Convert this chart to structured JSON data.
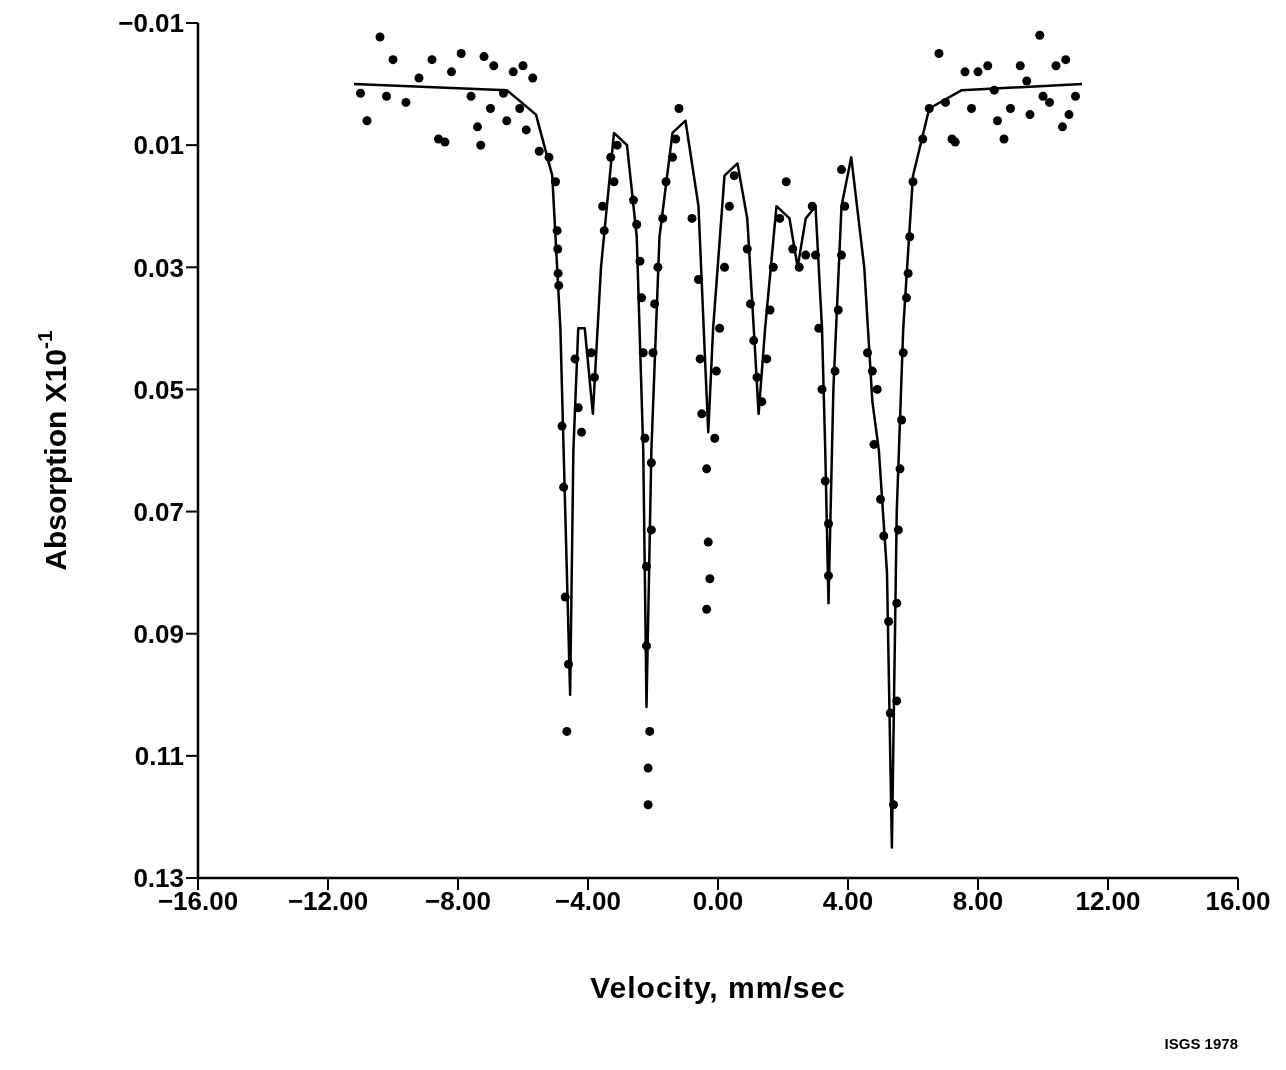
{
  "chart_data": {
    "type": "scatter",
    "xlabel": "Velocity, mm/sec",
    "ylabel": "Absorption X10$^{-1}$",
    "annotations": [
      "ISGS 1978"
    ],
    "xlim": [
      -16,
      16
    ],
    "ylim": [
      0.13,
      -0.01
    ],
    "xticks": [
      {
        "value": -16,
        "label": "−16.00"
      },
      {
        "value": -12,
        "label": "−12.00"
      },
      {
        "value": -8,
        "label": "−8.00"
      },
      {
        "value": -4,
        "label": "−4.00"
      },
      {
        "value": 0,
        "label": "0.00"
      },
      {
        "value": 4,
        "label": "4.00"
      },
      {
        "value": 8,
        "label": "8.00"
      },
      {
        "value": 12,
        "label": "12.00"
      },
      {
        "value": 16,
        "label": "16.00"
      }
    ],
    "yticks": [
      {
        "value": -0.01,
        "label": "−0.01"
      },
      0.01,
      0.03,
      0.05,
      0.07,
      0.09,
      0.11,
      0.13
    ],
    "grid": false,
    "marker": "circle",
    "series": [
      {
        "color": "#000000",
        "x": [
          -11.0,
          -10.8,
          -10.4,
          -10.2,
          -10.0,
          -9.6,
          -9.2,
          -8.8,
          -8.6,
          -8.4,
          -8.2,
          -7.9,
          -7.6,
          -7.4,
          -7.2,
          -7.0,
          -6.9,
          -6.6,
          -6.3,
          -6.0,
          -5.7,
          -6.5,
          -6.1,
          -5.9,
          -7.3,
          -5.5,
          -5.2,
          -5.0,
          -4.95,
          -4.93,
          -4.92,
          -4.9,
          -4.8,
          -4.75,
          -4.7,
          -4.6,
          -4.65,
          -4.4,
          -4.3,
          -4.2,
          -3.9,
          -3.8,
          -3.55,
          -3.5,
          -3.3,
          -3.1,
          -3.2,
          -2.6,
          -2.5,
          -2.4,
          -2.35,
          -2.3,
          -2.25,
          -2.2,
          -2.2,
          -2.1,
          -2.15,
          -2.15,
          -2.05,
          -2.05,
          -2.0,
          -1.95,
          -1.85,
          -1.7,
          -1.6,
          -1.4,
          -1.3,
          -1.2,
          -0.8,
          -0.6,
          -0.55,
          -0.5,
          -0.35,
          -0.3,
          -0.25,
          -0.35,
          -0.1,
          -0.05,
          0.05,
          0.2,
          0.35,
          0.5,
          0.9,
          1.0,
          1.1,
          1.2,
          1.35,
          1.5,
          1.6,
          1.7,
          1.9,
          2.1,
          2.3,
          2.5,
          2.7,
          2.9,
          3.0,
          3.1,
          3.2,
          3.3,
          3.4,
          3.4,
          3.6,
          3.7,
          3.8,
          3.9,
          3.8,
          4.6,
          4.75,
          4.8,
          4.9,
          5.0,
          5.1,
          5.25,
          5.3,
          5.4,
          5.5,
          5.5,
          5.55,
          5.6,
          5.65,
          5.7,
          5.8,
          5.85,
          5.9,
          6.0,
          6.3,
          6.5,
          6.8,
          7.0,
          7.2,
          7.3,
          7.6,
          7.8,
          8.0,
          8.3,
          8.6,
          8.8,
          9.0,
          9.3,
          9.6,
          9.9,
          10.0,
          10.2,
          10.4,
          10.6,
          10.8,
          11.0,
          10.7,
          9.5,
          8.5
        ],
        "values": [
          0.0015,
          0.006,
          -0.0077,
          0.002,
          -0.004,
          0.003,
          -0.001,
          -0.004,
          0.009,
          0.0095,
          -0.002,
          -0.005,
          0.002,
          0.007,
          -0.0045,
          0.004,
          -0.003,
          0.0015,
          -0.002,
          -0.003,
          -0.001,
          0.006,
          0.004,
          0.0075,
          0.01,
          0.011,
          0.012,
          0.016,
          0.024,
          0.027,
          0.031,
          0.033,
          0.056,
          0.066,
          0.084,
          0.095,
          0.106,
          0.045,
          0.053,
          0.057,
          0.044,
          0.048,
          0.02,
          0.024,
          0.012,
          0.01,
          0.016,
          0.019,
          0.023,
          0.029,
          0.035,
          0.044,
          0.058,
          0.079,
          0.092,
          0.106,
          0.112,
          0.118,
          0.073,
          0.062,
          0.044,
          0.036,
          0.03,
          0.022,
          0.016,
          0.012,
          0.009,
          0.004,
          0.022,
          0.032,
          0.045,
          0.054,
          0.063,
          0.075,
          0.081,
          0.086,
          0.058,
          0.047,
          0.04,
          0.03,
          0.02,
          0.015,
          0.027,
          0.036,
          0.042,
          0.048,
          0.052,
          0.045,
          0.037,
          0.03,
          0.022,
          0.016,
          0.027,
          0.03,
          0.028,
          0.02,
          0.028,
          0.04,
          0.05,
          0.065,
          0.072,
          0.0805,
          0.047,
          0.037,
          0.028,
          0.02,
          0.014,
          0.044,
          0.047,
          0.059,
          0.05,
          0.068,
          0.074,
          0.088,
          0.103,
          0.118,
          0.101,
          0.085,
          0.073,
          0.063,
          0.055,
          0.044,
          0.035,
          0.031,
          0.025,
          0.016,
          0.009,
          0.004,
          -0.005,
          0.003,
          0.009,
          0.0095,
          -0.002,
          0.004,
          -0.002,
          -0.003,
          0.006,
          0.009,
          0.004,
          -0.003,
          0.005,
          -0.008,
          0.002,
          0.003,
          -0.003,
          0.007,
          0.005,
          0.002,
          -0.004,
          -0.0005,
          0.001
        ]
      },
      {
        "type": "line",
        "color": "#000000",
        "marker": "none",
        "line_style": "solid",
        "x": [
          -11.2,
          -6.5,
          -5.6,
          -5.1,
          -4.85,
          -4.65,
          -4.55,
          -4.45,
          -4.3,
          -4.1,
          -3.85,
          -3.6,
          -3.2,
          -2.8,
          -2.5,
          -2.3,
          -2.2,
          -2.05,
          -1.8,
          -1.4,
          -1.0,
          -0.6,
          -0.4,
          -0.3,
          -0.15,
          0.2,
          0.6,
          0.9,
          1.1,
          1.25,
          1.45,
          1.8,
          2.2,
          2.45,
          2.7,
          3.0,
          3.2,
          3.3,
          3.4,
          3.55,
          3.8,
          4.1,
          4.5,
          4.75,
          4.95,
          5.2,
          5.35,
          5.5,
          5.7,
          6.0,
          6.5,
          7.5,
          11.2
        ],
        "values": [
          0,
          0.001,
          0.005,
          0.015,
          0.04,
          0.08,
          0.1,
          0.06,
          0.04,
          0.04,
          0.054,
          0.03,
          0.008,
          0.01,
          0.025,
          0.06,
          0.102,
          0.06,
          0.025,
          0.008,
          0.006,
          0.02,
          0.045,
          0.057,
          0.04,
          0.015,
          0.013,
          0.022,
          0.04,
          0.054,
          0.04,
          0.02,
          0.022,
          0.03,
          0.022,
          0.02,
          0.04,
          0.06,
          0.085,
          0.05,
          0.02,
          0.012,
          0.03,
          0.052,
          0.06,
          0.08,
          0.125,
          0.07,
          0.04,
          0.015,
          0.004,
          0.001,
          0
        ]
      }
    ]
  }
}
